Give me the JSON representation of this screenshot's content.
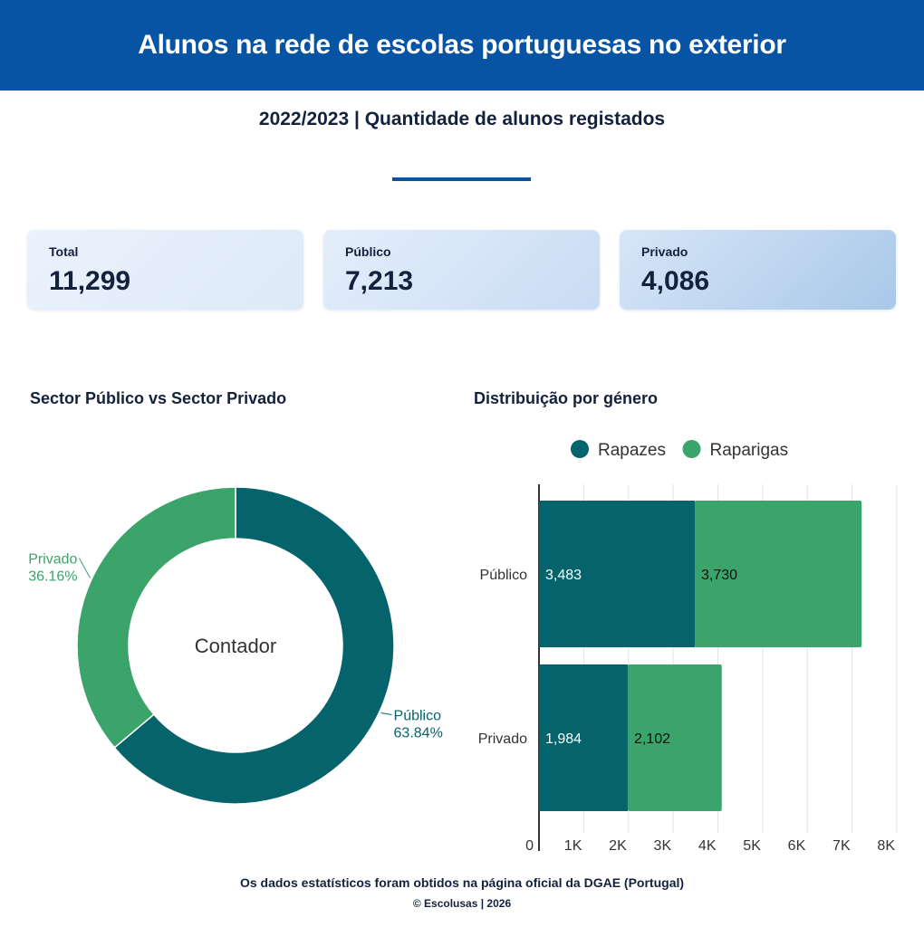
{
  "header": {
    "title": "Alunos na rede de escolas portuguesas no exterior"
  },
  "subtitle": "2022/2023 | Quantidade de alunos registados",
  "cards": [
    {
      "label": "Total",
      "value": "11,299"
    },
    {
      "label": "Público",
      "value": "7,213"
    },
    {
      "label": "Privado",
      "value": "4,086"
    }
  ],
  "colors": {
    "header": "#0753a4",
    "rapazes": "#05636b",
    "raparigas": "#3aa46b"
  },
  "footer": {
    "source": "Os dados estatísticos foram obtidos na página oficial da DGAE (Portugal)",
    "copyright": "© Escolusas | 2026"
  },
  "chart_data": [
    {
      "type": "pie",
      "title": "Sector Público vs Sector Privado",
      "center_label": "Contador",
      "slices": [
        {
          "name": "Público",
          "value": 7213,
          "percent_label": "63.84%",
          "color": "#05636b"
        },
        {
          "name": "Privado",
          "value": 4086,
          "percent_label": "36.16%",
          "color": "#3aa46b"
        }
      ]
    },
    {
      "type": "bar",
      "orientation": "horizontal",
      "stacked": true,
      "title": "Distribuição por género",
      "categories": [
        "Público",
        "Privado"
      ],
      "series": [
        {
          "name": "Rapazes",
          "values": [
            3483,
            1984
          ],
          "labels": [
            "3,483",
            "1,984"
          ],
          "color": "#05636b"
        },
        {
          "name": "Raparigas",
          "values": [
            3730,
            2102
          ],
          "labels": [
            "3,730",
            "2,102"
          ],
          "color": "#3aa46b"
        }
      ],
      "xlim": [
        0,
        8000
      ],
      "xticks": [
        0,
        1000,
        2000,
        3000,
        4000,
        5000,
        6000,
        7000,
        8000
      ],
      "xtick_labels": [
        "0",
        "1K",
        "2K",
        "3K",
        "4K",
        "5K",
        "6K",
        "7K",
        "8K"
      ],
      "legend": "top",
      "grid": true
    }
  ]
}
